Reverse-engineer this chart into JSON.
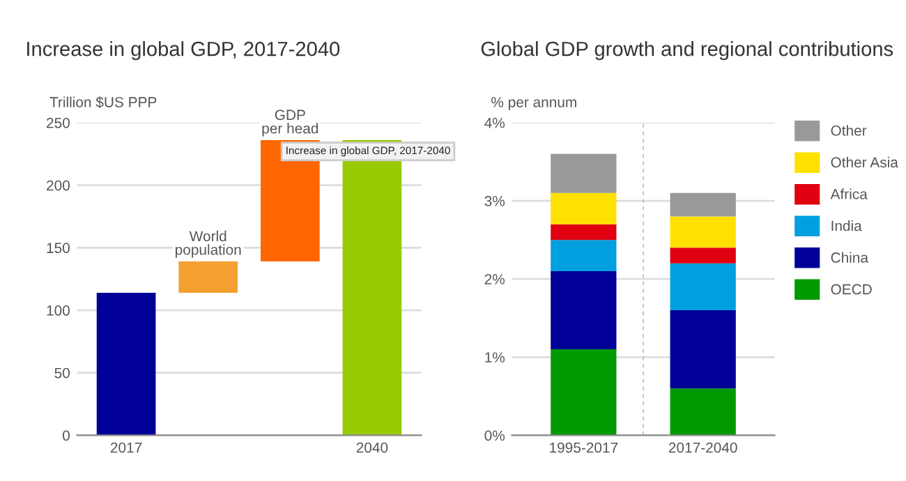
{
  "chart_data": [
    {
      "type": "bar",
      "title": "Increase in global GDP, 2017-2040",
      "ylabel": "Trillion $US PPP",
      "categories": [
        "2017",
        null,
        null,
        "2040"
      ],
      "values": [
        114,
        25,
        97,
        236
      ],
      "base": [
        0,
        114,
        139,
        0
      ],
      "colors": [
        "#000099",
        "#f5a030",
        "#ff6600",
        "#99cc00"
      ],
      "ylim": [
        0,
        250
      ],
      "yticks": [
        0,
        50,
        100,
        150,
        200,
        250
      ],
      "grid": "y",
      "annotations": [
        "World\npopulation",
        "GDP\nper head",
        "Increase in global GDP, 2017-2040"
      ]
    },
    {
      "type": "bar",
      "title": "Global GDP growth and regional contributions",
      "ylabel": "% per annum",
      "categories": [
        "1995-2017",
        "2017-2040"
      ],
      "stacked": true,
      "series": [
        {
          "name": "OECD",
          "color": "#009900",
          "values": [
            1.1,
            0.6
          ]
        },
        {
          "name": "China",
          "color": "#000099",
          "values": [
            1.0,
            1.0
          ]
        },
        {
          "name": "India",
          "color": "#00a0e0",
          "values": [
            0.4,
            0.6
          ]
        },
        {
          "name": "Africa",
          "color": "#e00010",
          "values": [
            0.2,
            0.2
          ]
        },
        {
          "name": "Other Asia",
          "color": "#ffe000",
          "values": [
            0.4,
            0.4
          ]
        },
        {
          "name": "Other",
          "color": "#999999",
          "values": [
            0.5,
            0.3
          ]
        }
      ],
      "ylim": [
        0,
        4
      ],
      "yticks": [
        {
          "value": 0,
          "label": "0%"
        },
        {
          "value": 1,
          "label": "1%"
        },
        {
          "value": 2,
          "label": "2%"
        },
        {
          "value": 3,
          "label": "3%"
        },
        {
          "value": 4,
          "label": "4%"
        }
      ],
      "grid": "y",
      "legend": "right"
    }
  ]
}
